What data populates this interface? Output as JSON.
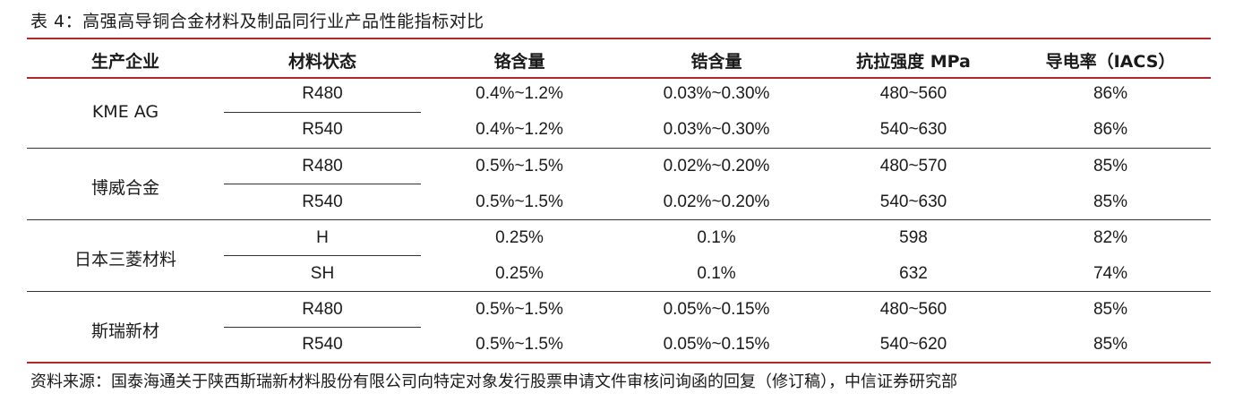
{
  "title": "表 4：高强高导铜合金材料及制品同行业产品性能指标对比",
  "headers": [
    "生产企业",
    "材料状态",
    "铬含量",
    "锆含量",
    "抗拉强度 MPa",
    "导电率（IACS）"
  ],
  "groups": [
    {
      "company": "KME AG",
      "rows": [
        [
          "R480",
          "0.4%~1.2%",
          "0.03%~0.30%",
          "480~560",
          "86%"
        ],
        [
          "R540",
          "0.4%~1.2%",
          "0.03%~0.30%",
          "540~630",
          "86%"
        ]
      ]
    },
    {
      "company": "博威合金",
      "rows": [
        [
          "R480",
          "0.5%~1.5%",
          "0.02%~0.20%",
          "480~570",
          "85%"
        ],
        [
          "R540",
          "0.5%~1.5%",
          "0.02%~0.20%",
          "540~630",
          "85%"
        ]
      ]
    },
    {
      "company": "日本三菱材料",
      "rows": [
        [
          "H",
          "0.25%",
          "0.1%",
          "598",
          "82%"
        ],
        [
          "SH",
          "0.25%",
          "0.1%",
          "632",
          "74%"
        ]
      ]
    },
    {
      "company": "斯瑞新材",
      "rows": [
        [
          "R480",
          "0.5%~1.5%",
          "0.05%~0.15%",
          "480~560",
          "85%"
        ],
        [
          "R540",
          "0.5%~1.5%",
          "0.05%~0.15%",
          "540~620",
          "85%"
        ]
      ]
    }
  ],
  "source": "资料来源：国泰海通关于陕西斯瑞新材料股份有限公司向特定对象发行股票申请文件审核问询函的回复（修订稿），中信证券研究部",
  "colors": {
    "accent_rule": "#b0282e",
    "text": "#1a1a1a"
  }
}
